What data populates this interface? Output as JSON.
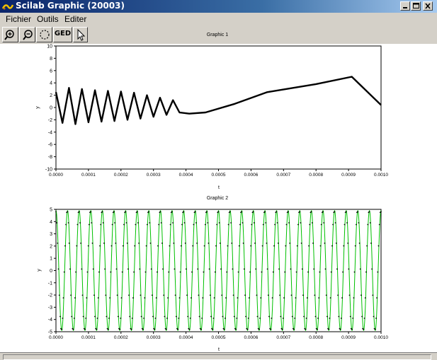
{
  "window": {
    "title": "Scilab Graphic (20003)"
  },
  "menu": {
    "items": [
      "Fichier",
      "Outils",
      "Editer"
    ]
  },
  "toolbar": {
    "buttons": [
      {
        "name": "zoom-in-icon",
        "label": ""
      },
      {
        "name": "zoom-out-icon",
        "label": ""
      },
      {
        "name": "rotate-icon",
        "label": ""
      },
      {
        "name": "ged-button",
        "label": "GED"
      },
      {
        "name": "pointer-icon",
        "label": ""
      }
    ]
  },
  "colors": {
    "curve1": "#000000",
    "curve2": "#00c000",
    "markers2": "#000000"
  },
  "chart_data": [
    {
      "type": "line",
      "title": "Graphic 1",
      "xlabel": "t",
      "ylabel": "y",
      "xlim": [
        0,
        0.001
      ],
      "ylim": [
        -10,
        10
      ],
      "xticks": [
        "0.0000",
        "0.0001",
        "0.0002",
        "0.0003",
        "0.0004",
        "0.0005",
        "0.0006",
        "0.0007",
        "0.0008",
        "0.0009",
        "0.0010"
      ],
      "yticks": [
        "-10",
        "-8",
        "-6",
        "-4",
        "-2",
        "0",
        "2",
        "4",
        "6",
        "8",
        "10"
      ],
      "series": [
        {
          "x": [
            0.0,
            2e-05,
            4e-05,
            6e-05,
            8e-05,
            0.0001,
            0.00012,
            0.00014,
            0.00016,
            0.00018,
            0.0002,
            0.00022,
            0.00024,
            0.00026,
            0.00028,
            0.0003,
            0.00032,
            0.00034,
            0.00036,
            0.00038,
            0.00041,
            0.00046,
            0.00055,
            0.00065,
            0.0008,
            0.00091,
            0.001
          ],
          "y": [
            2.5,
            -2.5,
            3.2,
            -2.7,
            3.0,
            -2.4,
            2.8,
            -2.3,
            2.7,
            -2.2,
            2.6,
            -2.0,
            2.4,
            -1.8,
            2.0,
            -1.5,
            1.6,
            -1.2,
            1.2,
            -0.8,
            -1.0,
            -0.8,
            0.6,
            2.5,
            3.8,
            5.0,
            0.4
          ]
        }
      ]
    },
    {
      "type": "line",
      "title": "Graphic 2",
      "xlabel": "t",
      "ylabel": "y",
      "xlim": [
        0,
        0.001
      ],
      "ylim": [
        -5,
        5
      ],
      "xticks": [
        "0.0000",
        "0.0001",
        "0.0002",
        "0.0003",
        "0.0004",
        "0.0005",
        "0.0006",
        "0.0007",
        "0.0008",
        "0.0009",
        "0.0010"
      ],
      "yticks": [
        "-5",
        "-4",
        "-3",
        "-2",
        "-1",
        "0",
        "1",
        "2",
        "3",
        "4",
        "5"
      ],
      "series": [
        {
          "function": "sine",
          "amplitude": 4.9,
          "cycles": 28,
          "markers": true
        }
      ]
    }
  ]
}
